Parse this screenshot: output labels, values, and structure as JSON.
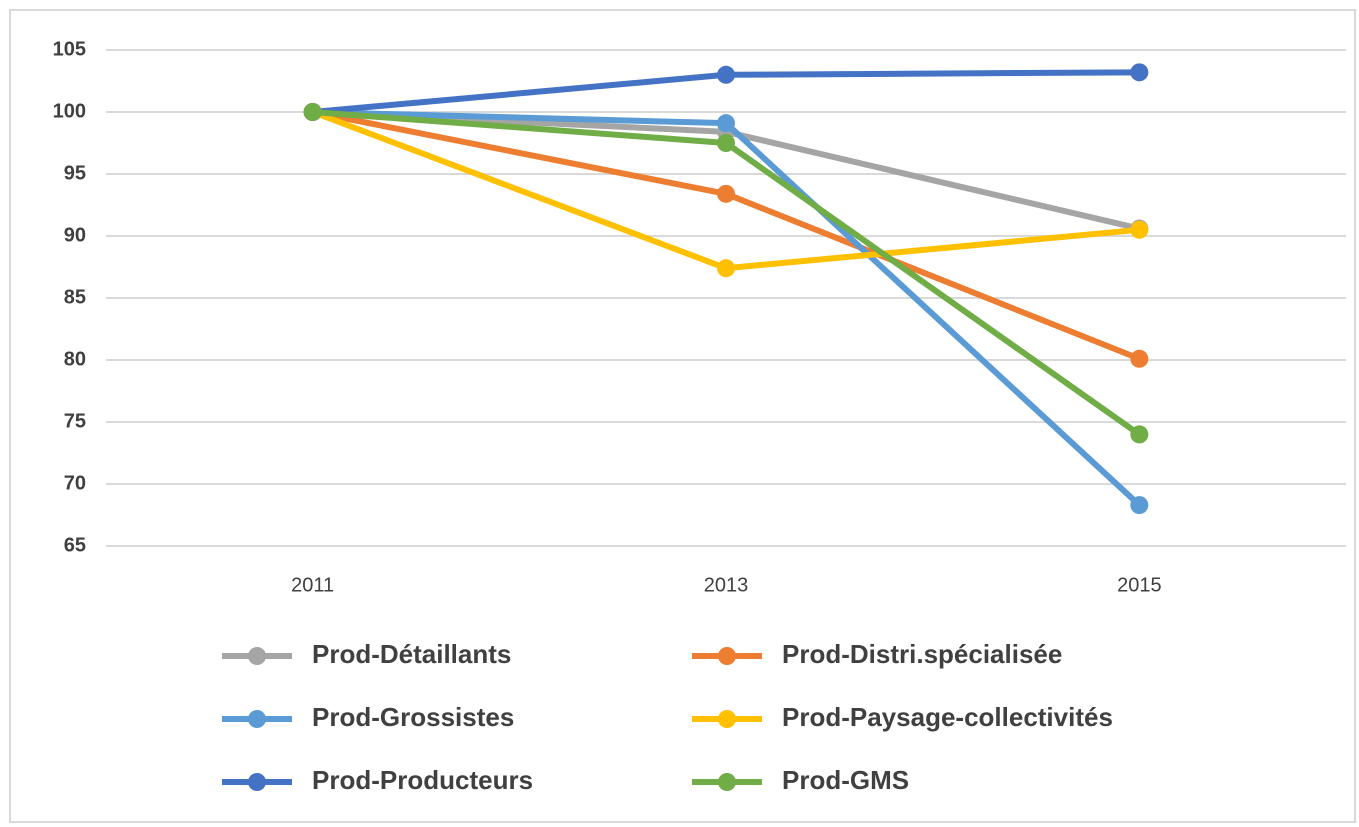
{
  "chart_data": {
    "type": "line",
    "categories": [
      "2011",
      "2013",
      "2015"
    ],
    "series": [
      {
        "name": "Prod-Détaillants",
        "color": "#a5a5a5",
        "values": [
          100,
          98.4,
          90.6
        ]
      },
      {
        "name": "Prod-Distri.spécialisée",
        "color": "#ed7d31",
        "values": [
          100,
          93.4,
          80.1
        ]
      },
      {
        "name": "Prod-Grossistes",
        "color": "#5b9bd5",
        "values": [
          100,
          99.1,
          68.3
        ]
      },
      {
        "name": "Prod-Paysage-collectivités",
        "color": "#ffc000",
        "values": [
          100,
          87.4,
          90.5
        ]
      },
      {
        "name": "Prod-Producteurs",
        "color": "#4472c4",
        "values": [
          100,
          103,
          103.2
        ]
      },
      {
        "name": "Prod-GMS",
        "color": "#70ad47",
        "values": [
          100,
          97.5,
          74
        ]
      }
    ],
    "ylim": [
      65,
      105
    ],
    "yticks": [
      65,
      70,
      75,
      80,
      85,
      90,
      95,
      100,
      105
    ],
    "grid": true,
    "legend": "bottom"
  }
}
